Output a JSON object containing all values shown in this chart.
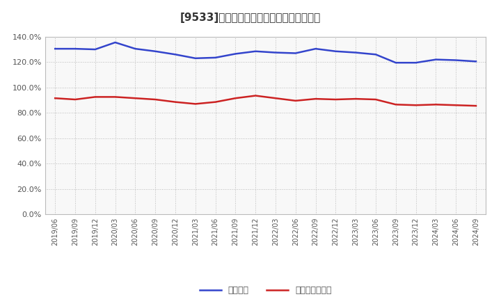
{
  "title": "[9533]　固定比率、固定長期適合率の推移",
  "x_labels": [
    "2019/06",
    "2019/09",
    "2019/12",
    "2020/03",
    "2020/06",
    "2020/09",
    "2020/12",
    "2021/03",
    "2021/06",
    "2021/09",
    "2021/12",
    "2022/03",
    "2022/06",
    "2022/09",
    "2022/12",
    "2023/03",
    "2023/06",
    "2023/09",
    "2023/12",
    "2024/03",
    "2024/06",
    "2024/09"
  ],
  "fixed_ratio": [
    130.5,
    130.5,
    130.0,
    135.5,
    130.5,
    128.5,
    126.0,
    123.0,
    123.5,
    126.5,
    128.5,
    127.5,
    127.0,
    130.5,
    128.5,
    127.5,
    126.0,
    119.5,
    119.5,
    122.0,
    121.5,
    120.5
  ],
  "fixed_long_term_ratio": [
    91.5,
    90.5,
    92.5,
    92.5,
    91.5,
    90.5,
    88.5,
    87.0,
    88.5,
    91.5,
    93.5,
    91.5,
    89.5,
    91.0,
    90.5,
    91.0,
    90.5,
    86.5,
    86.0,
    86.5,
    86.0,
    85.5
  ],
  "blue_color": "#3344cc",
  "red_color": "#cc2222",
  "bg_color": "#ffffff",
  "plot_bg_color": "#f8f8f8",
  "grid_color": "#aaaaaa",
  "title_color": "#333333",
  "ylim": [
    0,
    140
  ],
  "yticks": [
    0,
    20,
    40,
    60,
    80,
    100,
    120,
    140
  ],
  "legend_label_blue": "固定比率",
  "legend_label_red": "固定長期適合率"
}
